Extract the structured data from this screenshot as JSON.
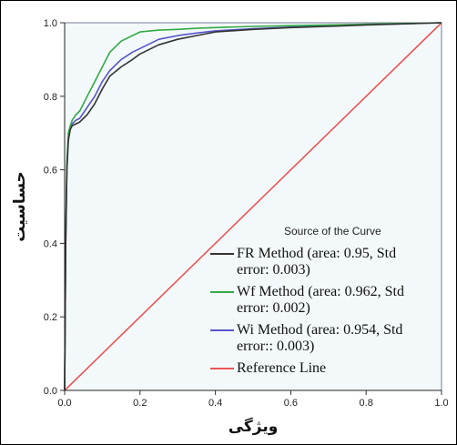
{
  "chart_data": {
    "type": "line",
    "xlabel": "ویژگی",
    "ylabel": "حساسیت",
    "xlim": [
      0,
      1
    ],
    "ylim": [
      0,
      1
    ],
    "x_ticks": [
      "0.0",
      "0.2",
      "0.4",
      "0.6",
      "0.8",
      "1.0"
    ],
    "y_ticks": [
      "0.0",
      "0.2",
      "0.4",
      "0.6",
      "0.8",
      "1.0"
    ],
    "grid": false,
    "legend_position": "lower-right",
    "legend_title": "Source of the Curve",
    "background_color": "#f3f9fb",
    "series": [
      {
        "name": "FR Method",
        "legend_lines": [
          "FR Method (area: 0.95, Std",
          "error: 0.003)"
        ],
        "color": "#333333",
        "x": [
          0,
          0.003,
          0.006,
          0.01,
          0.015,
          0.02,
          0.03,
          0.04,
          0.05,
          0.06,
          0.08,
          0.1,
          0.12,
          0.15,
          0.18,
          0.2,
          0.25,
          0.3,
          0.35,
          0.4,
          0.5,
          0.6,
          0.7,
          0.8,
          0.9,
          1.0
        ],
        "y": [
          0,
          0.4,
          0.6,
          0.68,
          0.71,
          0.72,
          0.725,
          0.73,
          0.74,
          0.75,
          0.78,
          0.82,
          0.855,
          0.88,
          0.9,
          0.915,
          0.94,
          0.955,
          0.965,
          0.975,
          0.982,
          0.987,
          0.99,
          0.994,
          0.997,
          1.0
        ]
      },
      {
        "name": "Wf Method",
        "legend_lines": [
          "Wf Method (area: 0.962, Std",
          "error: 0.002)"
        ],
        "color": "#33aa44",
        "x": [
          0,
          0.003,
          0.006,
          0.01,
          0.015,
          0.02,
          0.03,
          0.04,
          0.05,
          0.06,
          0.08,
          0.1,
          0.12,
          0.15,
          0.18,
          0.2,
          0.25,
          0.3,
          0.35,
          0.4,
          0.5,
          0.6,
          0.7,
          0.8,
          0.9,
          1.0
        ],
        "y": [
          0,
          0.42,
          0.62,
          0.7,
          0.72,
          0.735,
          0.75,
          0.76,
          0.78,
          0.8,
          0.84,
          0.88,
          0.92,
          0.95,
          0.965,
          0.975,
          0.98,
          0.982,
          0.985,
          0.987,
          0.99,
          0.992,
          0.994,
          0.996,
          0.998,
          1.0
        ]
      },
      {
        "name": "Wi Method",
        "legend_lines": [
          "Wi Method (area: 0.954, Std",
          "error:: 0.003)"
        ],
        "color": "#5555cc",
        "x": [
          0,
          0.003,
          0.006,
          0.01,
          0.015,
          0.02,
          0.03,
          0.04,
          0.05,
          0.06,
          0.08,
          0.1,
          0.12,
          0.15,
          0.18,
          0.2,
          0.25,
          0.3,
          0.35,
          0.4,
          0.5,
          0.6,
          0.7,
          0.8,
          0.9,
          1.0
        ],
        "y": [
          0,
          0.41,
          0.61,
          0.69,
          0.715,
          0.725,
          0.735,
          0.74,
          0.755,
          0.77,
          0.8,
          0.84,
          0.87,
          0.9,
          0.92,
          0.93,
          0.955,
          0.965,
          0.972,
          0.978,
          0.984,
          0.988,
          0.991,
          0.995,
          0.997,
          1.0
        ]
      },
      {
        "name": "Reference Line",
        "legend_lines": [
          "Reference Line"
        ],
        "color": "#ee5555",
        "x": [
          0,
          1
        ],
        "y": [
          0,
          1
        ]
      }
    ]
  }
}
